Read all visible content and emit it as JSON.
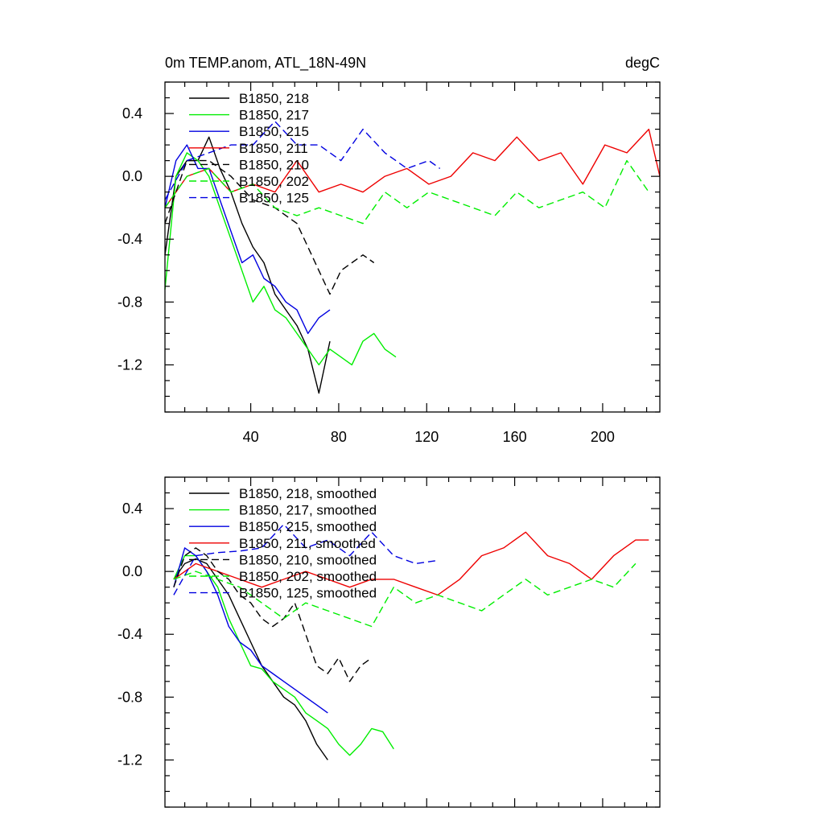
{
  "colors": {
    "218": "#000000",
    "217": "#00ee00",
    "215": "#0000e0",
    "211": "#ee0000",
    "210": "#000000",
    "202": "#00ee00",
    "125": "#0000e0"
  },
  "chart_data": [
    {
      "type": "line",
      "title": "0m TEMP.anom, ATL_18N-49N",
      "units": "degC",
      "xlim": [
        1,
        226
      ],
      "ylim": [
        -1.5,
        0.6
      ],
      "x_major_ticks": [
        40,
        80,
        120,
        160,
        200
      ],
      "x_tick_labels": [
        "40",
        "80",
        "120",
        "160",
        "200"
      ],
      "y_major_ticks": [
        0.4,
        0.0,
        -0.4,
        -0.8,
        -1.2
      ],
      "y_tick_labels": [
        "0.4",
        "0.0",
        "-0.4",
        "-0.8",
        "-1.2"
      ],
      "legend_position": "top-left",
      "series": [
        {
          "name": "B1850, 218",
          "id": "218",
          "style": "solid",
          "x": [
            1,
            6,
            11,
            16,
            21,
            26,
            31,
            36,
            41,
            46,
            51,
            56,
            61,
            66,
            71,
            76
          ],
          "y": [
            -0.5,
            0.0,
            0.1,
            0.1,
            0.25,
            0.05,
            -0.1,
            -0.3,
            -0.45,
            -0.55,
            -0.75,
            -0.85,
            -0.95,
            -1.1,
            -1.38,
            -1.05
          ]
        },
        {
          "name": "B1850, 217",
          "id": "217",
          "style": "solid",
          "x": [
            1,
            6,
            11,
            16,
            21,
            26,
            31,
            36,
            41,
            46,
            51,
            56,
            61,
            66,
            71,
            76,
            81,
            86,
            91,
            96,
            101,
            106
          ],
          "y": [
            -0.72,
            0.0,
            0.15,
            0.1,
            0.0,
            -0.2,
            -0.4,
            -0.6,
            -0.8,
            -0.7,
            -0.85,
            -0.9,
            -1.0,
            -1.1,
            -1.2,
            -1.1,
            -1.15,
            -1.2,
            -1.05,
            -1.0,
            -1.1,
            -1.15
          ]
        },
        {
          "name": "B1850, 215",
          "id": "215",
          "style": "solid",
          "x": [
            1,
            6,
            11,
            16,
            21,
            26,
            31,
            36,
            41,
            46,
            51,
            56,
            61,
            66,
            71,
            76
          ],
          "y": [
            -0.2,
            0.1,
            0.2,
            0.05,
            0.05,
            -0.15,
            -0.35,
            -0.55,
            -0.5,
            -0.65,
            -0.7,
            -0.8,
            -0.85,
            -1.0,
            -0.9,
            -0.85
          ]
        },
        {
          "name": "B1850, 211",
          "id": "211",
          "style": "solid",
          "x": [
            1,
            11,
            21,
            31,
            41,
            51,
            61,
            71,
            81,
            91,
            101,
            111,
            121,
            131,
            141,
            151,
            161,
            171,
            181,
            191,
            201,
            211,
            221,
            226
          ],
          "y": [
            -0.2,
            0.0,
            0.05,
            -0.1,
            -0.05,
            -0.1,
            0.1,
            -0.1,
            -0.05,
            -0.1,
            0.0,
            0.05,
            -0.05,
            0.0,
            0.15,
            0.1,
            0.25,
            0.1,
            0.15,
            -0.05,
            0.2,
            0.15,
            0.3,
            0.0
          ]
        },
        {
          "name": "B1850, 210",
          "id": "210",
          "style": "dashed",
          "x": [
            1,
            11,
            21,
            31,
            41,
            51,
            61,
            66,
            71,
            76,
            81,
            86,
            91,
            96
          ],
          "y": [
            -0.3,
            0.1,
            0.1,
            0.0,
            -0.15,
            -0.2,
            -0.3,
            -0.45,
            -0.6,
            -0.75,
            -0.6,
            -0.55,
            -0.5,
            -0.55
          ]
        },
        {
          "name": "B1850, 202",
          "id": "202",
          "style": "dashed",
          "x": [
            1,
            11,
            21,
            31,
            41,
            51,
            61,
            71,
            81,
            91,
            101,
            111,
            121,
            131,
            141,
            151,
            161,
            171,
            181,
            191,
            201,
            211,
            221
          ],
          "y": [
            -0.2,
            0.0,
            0.05,
            -0.1,
            -0.05,
            -0.2,
            -0.25,
            -0.2,
            -0.25,
            -0.3,
            -0.1,
            -0.2,
            -0.1,
            -0.15,
            -0.2,
            -0.25,
            -0.1,
            -0.2,
            -0.15,
            -0.1,
            -0.2,
            0.1,
            -0.1
          ]
        },
        {
          "name": "B1850, 125",
          "id": "125",
          "style": "dashed",
          "x": [
            1,
            11,
            21,
            31,
            41,
            51,
            61,
            71,
            81,
            91,
            101,
            111,
            121,
            126
          ],
          "y": [
            -0.15,
            0.1,
            0.15,
            0.2,
            0.2,
            0.35,
            0.2,
            0.2,
            0.1,
            0.3,
            0.15,
            0.05,
            0.1,
            0.05
          ]
        }
      ]
    },
    {
      "type": "line",
      "xlim": [
        1,
        226
      ],
      "ylim": [
        -1.5,
        0.6
      ],
      "x_major_ticks": [
        40,
        80,
        120,
        160,
        200
      ],
      "y_major_ticks": [
        0.4,
        0.0,
        -0.4,
        -0.8,
        -1.2
      ],
      "y_tick_labels": [
        "0.4",
        "0.0",
        "-0.4",
        "-0.8",
        "-1.2"
      ],
      "legend_position": "top-left",
      "series": [
        {
          "name": "B1850, 218, smoothed",
          "id": "218",
          "style": "solid",
          "x": [
            5,
            10,
            15,
            20,
            25,
            30,
            35,
            40,
            45,
            50,
            55,
            60,
            65,
            70,
            75
          ],
          "y": [
            -0.05,
            0.05,
            0.08,
            0.05,
            -0.05,
            -0.15,
            -0.3,
            -0.45,
            -0.6,
            -0.7,
            -0.8,
            -0.85,
            -0.95,
            -1.1,
            -1.2
          ]
        },
        {
          "name": "B1850, 217, smoothed",
          "id": "217",
          "style": "solid",
          "x": [
            5,
            10,
            15,
            20,
            25,
            30,
            35,
            40,
            45,
            50,
            55,
            60,
            65,
            70,
            75,
            80,
            85,
            90,
            95,
            100,
            105
          ],
          "y": [
            -0.05,
            0.1,
            0.1,
            0.0,
            -0.1,
            -0.3,
            -0.45,
            -0.6,
            -0.62,
            -0.7,
            -0.75,
            -0.8,
            -0.9,
            -0.95,
            -1.0,
            -1.1,
            -1.17,
            -1.1,
            -1.0,
            -1.02,
            -1.13
          ]
        },
        {
          "name": "B1850, 215, smoothed",
          "id": "215",
          "style": "solid",
          "x": [
            5,
            10,
            15,
            20,
            25,
            30,
            35,
            40,
            45,
            50,
            55,
            60,
            65,
            70,
            75
          ],
          "y": [
            -0.1,
            0.15,
            0.1,
            0.0,
            -0.15,
            -0.35,
            -0.45,
            -0.5,
            -0.6,
            -0.65,
            -0.7,
            -0.75,
            -0.8,
            -0.85,
            -0.9
          ]
        },
        {
          "name": "B1850, 211, smoothed",
          "id": "211",
          "style": "solid",
          "x": [
            5,
            15,
            25,
            35,
            45,
            55,
            65,
            75,
            85,
            95,
            105,
            115,
            125,
            135,
            145,
            155,
            165,
            175,
            185,
            195,
            205,
            215,
            221
          ],
          "y": [
            -0.05,
            0.05,
            0.0,
            -0.05,
            -0.1,
            -0.05,
            0.0,
            -0.05,
            -0.1,
            -0.05,
            -0.05,
            -0.1,
            -0.15,
            -0.05,
            0.1,
            0.15,
            0.25,
            0.1,
            0.05,
            -0.05,
            0.1,
            0.2,
            0.2
          ]
        },
        {
          "name": "B1850, 210, smoothed",
          "id": "210",
          "style": "dashed",
          "x": [
            5,
            10,
            15,
            20,
            25,
            30,
            35,
            40,
            45,
            50,
            55,
            60,
            65,
            70,
            75,
            80,
            85,
            90,
            95
          ],
          "y": [
            -0.1,
            0.1,
            0.15,
            0.1,
            0.0,
            -0.05,
            -0.15,
            -0.2,
            -0.3,
            -0.35,
            -0.3,
            -0.2,
            -0.4,
            -0.6,
            -0.65,
            -0.55,
            -0.7,
            -0.6,
            -0.55
          ]
        },
        {
          "name": "B1850, 202, smoothed",
          "id": "202",
          "style": "dashed",
          "x": [
            5,
            15,
            25,
            35,
            45,
            55,
            65,
            75,
            85,
            95,
            105,
            115,
            125,
            135,
            145,
            155,
            165,
            175,
            185,
            195,
            205,
            215
          ],
          "y": [
            -0.05,
            0.0,
            -0.05,
            -0.1,
            -0.2,
            -0.3,
            -0.2,
            -0.25,
            -0.3,
            -0.35,
            -0.1,
            -0.2,
            -0.15,
            -0.2,
            -0.25,
            -0.15,
            -0.05,
            -0.15,
            -0.1,
            -0.05,
            -0.1,
            0.05
          ]
        },
        {
          "name": "B1850, 125, smoothed",
          "id": "125",
          "style": "dashed",
          "x": [
            5,
            15,
            25,
            35,
            45,
            55,
            65,
            75,
            85,
            95,
            105,
            115,
            125
          ],
          "y": [
            -0.15,
            0.1,
            0.12,
            0.13,
            0.15,
            0.3,
            0.15,
            0.2,
            0.1,
            0.25,
            0.1,
            0.05,
            0.07
          ]
        }
      ]
    }
  ]
}
